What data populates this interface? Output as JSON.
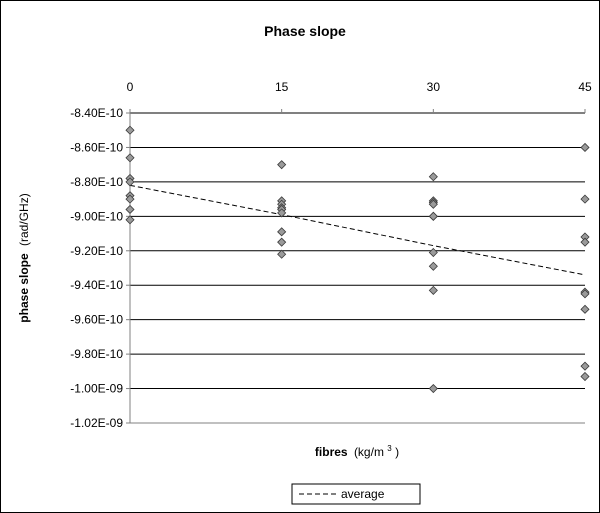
{
  "chart_data": {
    "type": "scatter",
    "title": "Phase slope",
    "xlabel": {
      "main": "fibres",
      "unit_prefix": "(kg/m",
      "unit_sup": "3",
      "unit_suffix": ")"
    },
    "ylabel": {
      "main": "phase slope",
      "unit": "(rad/GHz)"
    },
    "x_ticks": [
      0,
      15,
      30,
      45
    ],
    "xlim": [
      0,
      45
    ],
    "y_ticks": [
      "-8.40E-10",
      "-8.60E-10",
      "-8.80E-10",
      "-9.00E-10",
      "-9.20E-10",
      "-9.40E-10",
      "-9.60E-10",
      "-9.80E-10",
      "-1.00E-09",
      "-1.02E-09"
    ],
    "ylim": [
      -1.02e-09,
      -8.4e-10
    ],
    "grid": true,
    "legend_placement": "bottom",
    "series": [
      {
        "kind": "points",
        "x": [
          0,
          0,
          0,
          0,
          0,
          0,
          0,
          0,
          15,
          15,
          15,
          15,
          15,
          15,
          15,
          15,
          15,
          30,
          30,
          30,
          30,
          30,
          30,
          30,
          30,
          30,
          30,
          45,
          45,
          45,
          45,
          45,
          45,
          45,
          45,
          45
        ],
        "y": [
          -8.5e-10,
          -8.66e-10,
          -8.78e-10,
          -8.8e-10,
          -8.88e-10,
          -8.9e-10,
          -8.96e-10,
          -9.02e-10,
          -8.7e-10,
          -8.91e-10,
          -8.93e-10,
          -8.95e-10,
          -8.96e-10,
          -8.98e-10,
          -9.09e-10,
          -9.15e-10,
          -9.22e-10,
          -8.77e-10,
          -8.91e-10,
          -8.92e-10,
          -8.93e-10,
          -9e-10,
          -9.21e-10,
          -9.29e-10,
          -9.43e-10,
          -1e-09,
          -9e-10,
          -8.6e-10,
          -8.9e-10,
          -9.12e-10,
          -9.15e-10,
          -9.44e-10,
          -9.45e-10,
          -9.54e-10,
          -9.87e-10,
          -9.93e-10
        ]
      },
      {
        "kind": "line",
        "name": "average",
        "x": [
          0,
          15,
          30,
          45
        ],
        "y": [
          -8.82e-10,
          -8.99e-10,
          -9.17e-10,
          -9.34e-10
        ]
      }
    ],
    "colors": {
      "marker_fill": "#9a9a9a",
      "marker_stroke": "#3a3a3a",
      "grid": "#000000",
      "axis": "#808080",
      "border": "#000000"
    }
  }
}
